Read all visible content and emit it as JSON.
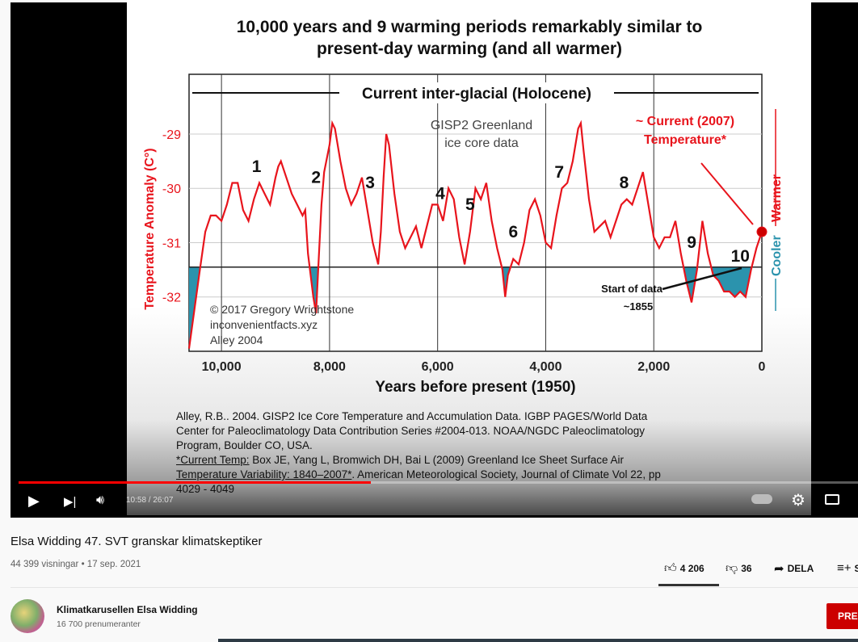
{
  "player": {
    "current_time": "10:58",
    "duration": "26:07",
    "time_display": "10:58 / 26:07",
    "progress_fraction": 0.42,
    "icons": [
      "play-icon",
      "next-icon",
      "volume-icon",
      "autoplay-toggle-icon",
      "settings-gear-icon",
      "miniplayer-icon"
    ]
  },
  "slide": {
    "title_line1": "10,000 years and 9 warming periods remarkably similar to",
    "title_line2": "present-day warming (and all warmer)",
    "references": [
      "Alley, R.B.. 2004. GISP2 Ice Core Temperature and Accumulation Data. IGBP PAGES/World Data",
      "Center for Paleoclimatology Data Contribution Series #2004-013. NOAA/NGDC Paleoclimatology",
      "Program, Boulder CO, USA."
    ],
    "ref2_label": "*Current Temp:",
    "ref2_text": " Box JE, Yang L, Bromwich DH, Bai L (2009) Greenland Ice Sheet Surface Air",
    "ref2_line2a": "Temperature Variability: 1840–2007*",
    "ref2_line2b": ". American Meteorological Society, Journal of Climate Vol 22, pp",
    "ref2_line3": "4029 - 4049"
  },
  "chart_data": {
    "type": "line",
    "xlabel": "Years before present (1950)",
    "ylabel": "Temperature Anomaly (C°)",
    "xlim": [
      10600,
      0
    ],
    "ylim": [
      -33,
      -27.9
    ],
    "xticks": [
      10000,
      8000,
      6000,
      4000,
      2000,
      0
    ],
    "xtick_labels": [
      "10,000",
      "8,000",
      "6,000",
      "4,000",
      "2,000",
      "0"
    ],
    "yticks": [
      -29,
      -30,
      -31,
      -32
    ],
    "ytick_labels": [
      "-29",
      "-30",
      "-31",
      "-32"
    ],
    "grid": true,
    "baseline": -31.45,
    "colors": {
      "line": "#e8141c",
      "fill": "#2b93ad",
      "warmer": "#e8141c",
      "cooler": "#2b93ad"
    },
    "series": [
      {
        "x": [
          10600,
          10400,
          10300,
          10200,
          10100,
          10000,
          9900,
          9800,
          9700,
          9600,
          9500,
          9400,
          9300,
          9200,
          9100,
          9000,
          8950,
          8900,
          8800,
          8700,
          8600,
          8500,
          8450,
          8400,
          8300,
          8250,
          8200,
          8150,
          8100,
          8000,
          7950,
          7900,
          7800,
          7700,
          7600,
          7500,
          7400,
          7300,
          7200,
          7100,
          7050,
          7000,
          6950,
          6900,
          6800,
          6700,
          6600,
          6500,
          6400,
          6300,
          6200,
          6100,
          6000,
          5900,
          5800,
          5700,
          5600,
          5500,
          5400,
          5300,
          5200,
          5100,
          5000,
          4900,
          4800,
          4750,
          4700,
          4600,
          4500,
          4400,
          4300,
          4200,
          4100,
          4000,
          3900,
          3800,
          3700,
          3600,
          3500,
          3400,
          3350,
          3300,
          3200,
          3100,
          3000,
          2900,
          2800,
          2700,
          2600,
          2500,
          2400,
          2300,
          2200,
          2100,
          2000,
          1900,
          1800,
          1700,
          1600,
          1500,
          1400,
          1300,
          1200,
          1100,
          1000,
          900,
          800,
          700,
          600,
          500,
          400,
          300,
          200,
          100,
          0
        ],
        "y": [
          -32.95,
          -31.5,
          -30.8,
          -30.5,
          -30.5,
          -30.6,
          -30.3,
          -29.9,
          -29.9,
          -30.4,
          -30.6,
          -30.2,
          -29.9,
          -30.1,
          -30.3,
          -29.8,
          -29.6,
          -29.5,
          -29.8,
          -30.1,
          -30.3,
          -30.5,
          -30.4,
          -31.2,
          -32.0,
          -32.3,
          -31.3,
          -30.3,
          -29.7,
          -29.2,
          -28.8,
          -28.9,
          -29.5,
          -30.0,
          -30.3,
          -30.1,
          -29.8,
          -30.4,
          -31.0,
          -31.4,
          -30.8,
          -29.8,
          -29.0,
          -29.2,
          -30.1,
          -30.8,
          -31.1,
          -30.9,
          -30.7,
          -31.1,
          -30.7,
          -30.3,
          -30.3,
          -30.6,
          -30.0,
          -30.2,
          -30.9,
          -31.4,
          -30.8,
          -30.0,
          -30.2,
          -29.9,
          -30.6,
          -31.1,
          -31.5,
          -32.0,
          -31.6,
          -31.3,
          -31.4,
          -31.0,
          -30.4,
          -30.2,
          -30.5,
          -31.0,
          -31.1,
          -30.5,
          -30.0,
          -29.9,
          -29.5,
          -28.9,
          -28.8,
          -29.3,
          -30.2,
          -30.8,
          -30.7,
          -30.6,
          -30.9,
          -30.6,
          -30.3,
          -30.2,
          -30.3,
          -30.0,
          -29.7,
          -30.3,
          -30.9,
          -31.1,
          -30.9,
          -30.9,
          -30.6,
          -31.2,
          -31.7,
          -32.1,
          -31.5,
          -30.6,
          -31.2,
          -31.6,
          -31.7,
          -31.9,
          -31.9,
          -32.0,
          -31.9,
          -32.0,
          -31.5,
          -31.1,
          -30.8
        ]
      }
    ],
    "current_point": {
      "x": 0,
      "y": -30.8
    },
    "annotations": {
      "span_label": "Current inter-glacial (Holocene)",
      "source_line1": "GISP2 Greenland",
      "source_line2": "ice core data",
      "current_line1": "~ Current (2007)",
      "current_line2": "Temperature*",
      "start_line1": "Start of data",
      "start_line2": "~1855",
      "copyright1": "© 2017 Gregory Wrightstone",
      "copyright2": "inconvenientfacts.xyz",
      "copyright3": "Alley 2004",
      "warmer": "Warmer",
      "cooler": "Cooler",
      "periods": [
        {
          "label": "1",
          "x": 9350,
          "y": -29.7
        },
        {
          "label": "2",
          "x": 8250,
          "y": -29.9
        },
        {
          "label": "3",
          "x": 7250,
          "y": -30.0
        },
        {
          "label": "4",
          "x": 5950,
          "y": -30.2
        },
        {
          "label": "5",
          "x": 5400,
          "y": -30.4
        },
        {
          "label": "6",
          "x": 4600,
          "y": -30.9
        },
        {
          "label": "7",
          "x": 3750,
          "y": -29.8
        },
        {
          "label": "8",
          "x": 2550,
          "y": -30.0
        },
        {
          "label": "9",
          "x": 1300,
          "y": -31.1
        },
        {
          "label": "10",
          "x": 400,
          "y": -31.35
        }
      ]
    }
  },
  "video": {
    "title": "Elsa Widding 47. SVT granskar klimatskeptiker",
    "views": "44 399 visningar",
    "date": "17 sep. 2021",
    "meta": "44 399 visningar • 17 sep. 2021",
    "likes": "4 206",
    "dislikes": "36",
    "share": "DELA",
    "save": "S"
  },
  "channel": {
    "name": "Klimatkarusellen Elsa Widding",
    "subscribers": "16 700 prenumeranter",
    "subscribe": "PRE"
  }
}
